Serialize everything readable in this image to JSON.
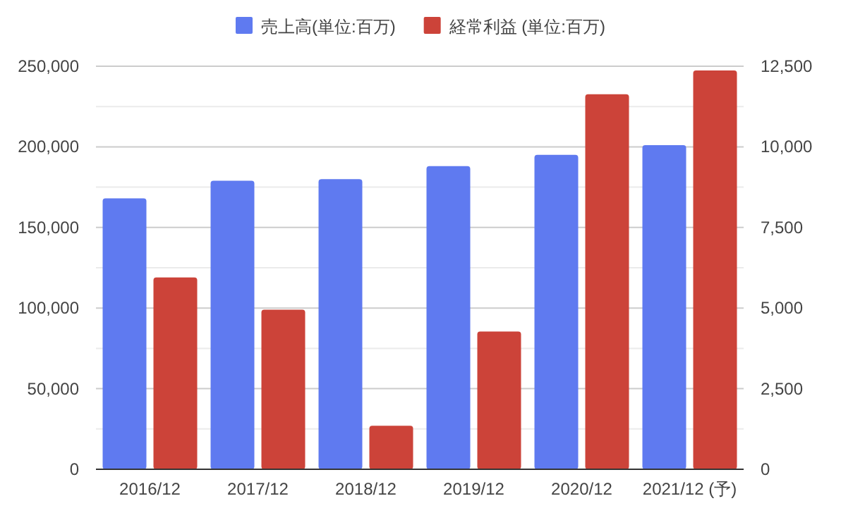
{
  "chart_data": {
    "type": "bar",
    "categories": [
      "2016/12",
      "2017/12",
      "2018/12",
      "2019/12",
      "2020/12",
      "2021/12 (予)"
    ],
    "series": [
      {
        "name": "売上高(単位:百万)",
        "color": "#5f7af0",
        "values": [
          168000,
          179000,
          180000,
          188000,
          195000,
          201000
        ]
      },
      {
        "name": "経常利益 (単位:百万)",
        "color": "#cc4339",
        "axis": "y2",
        "values": [
          5950,
          4950,
          1350,
          4270,
          11630,
          12370
        ]
      }
    ],
    "ylim": [
      0,
      250000
    ],
    "yticks": [
      0,
      {
        "value": 25000,
        "label": null
      },
      {
        "value": 50000,
        "label": "50,000"
      },
      {
        "value": 75000,
        "label": null
      },
      {
        "value": 100000,
        "label": "100,000"
      },
      {
        "value": 125000,
        "label": null
      },
      {
        "value": 150000,
        "label": "150,000"
      },
      {
        "value": 175000,
        "label": null
      },
      {
        "value": 200000,
        "label": "200,000"
      },
      {
        "value": 225000,
        "label": null
      },
      {
        "value": 250000,
        "label": "250,000"
      }
    ],
    "y2lim": [
      0,
      12500
    ],
    "y2ticks": [
      0,
      {
        "value": 2500,
        "label": "2,500"
      },
      {
        "value": 5000,
        "label": "5,000"
      },
      {
        "value": 7500,
        "label": "7,500"
      },
      {
        "value": 10000,
        "label": "10,000"
      },
      {
        "value": 12500,
        "label": "12,500"
      }
    ],
    "grid": "y",
    "legend": "top"
  }
}
